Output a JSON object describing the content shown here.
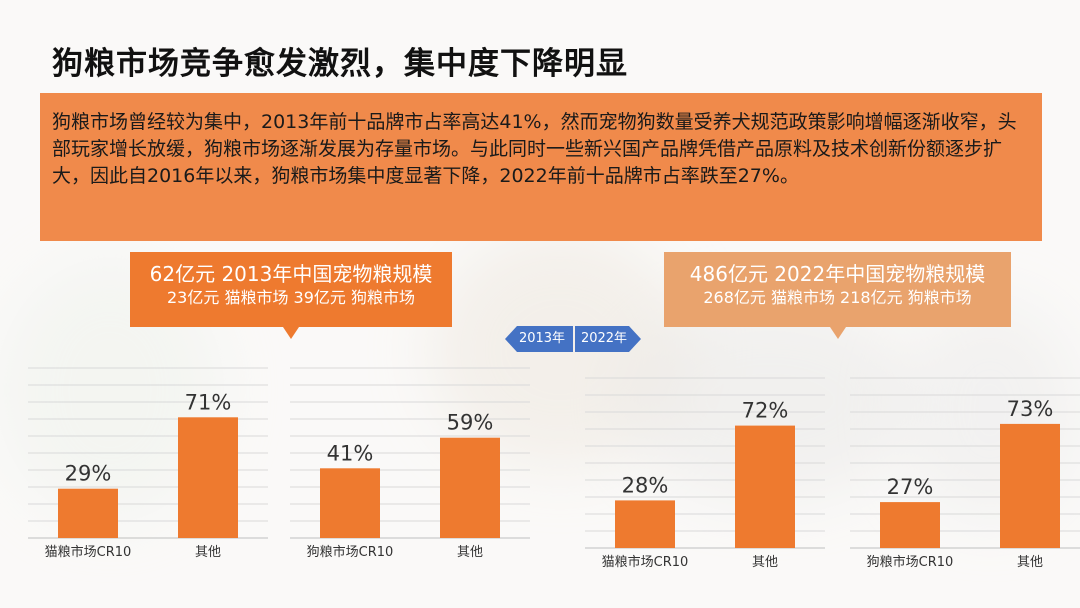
{
  "page": {
    "title": "狗粮市场竞争愈发激烈，集中度下降明显",
    "intro": "狗粮市场曾经较为集中，2013年前十品牌市占率高达41%，然而宠物狗数量受养犬规范政策影响增幅逐渐收窄，头部玩家增长放缓，狗粮市场逐渐发展为存量市场。与此同时一些新兴国产品牌凭借产品原料及技术创新份额逐步扩大，因此自2016年以来，狗粮市场集中度显著下降，2022年前十品牌市占率跌至27%。"
  },
  "callouts": {
    "y2013": {
      "line1": "62亿元 2013年中国宠物粮规模",
      "line2": "23亿元 猫粮市场   39亿元  狗粮市场"
    },
    "y2022": {
      "line1": "486亿元 2022年中国宠物粮规模",
      "line2": "268亿元 猫粮市场 218亿元 狗粮市场"
    }
  },
  "year_nav": {
    "left": "2013年",
    "right": "2022年"
  },
  "colors": {
    "accent": "#ee7a2f",
    "intro_bg": "#f08a4b",
    "callout_2022": "#e9a36d",
    "nav": "#4472c4"
  },
  "chart_data": [
    {
      "type": "bar",
      "categories": [
        "猫粮市场CR10",
        "其他"
      ],
      "values": [
        29,
        71
      ],
      "labels": [
        "29%",
        "71%"
      ],
      "ylim": [
        0,
        100
      ]
    },
    {
      "type": "bar",
      "categories": [
        "狗粮市场CR10",
        "其他"
      ],
      "values": [
        41,
        59
      ],
      "labels": [
        "41%",
        "59%"
      ],
      "ylim": [
        0,
        100
      ]
    },
    {
      "type": "bar",
      "categories": [
        "猫粮市场CR10",
        "其他"
      ],
      "values": [
        28,
        72
      ],
      "labels": [
        "28%",
        "72%"
      ],
      "ylim": [
        0,
        100
      ]
    },
    {
      "type": "bar",
      "categories": [
        "狗粮市场CR10",
        "其他"
      ],
      "values": [
        27,
        73
      ],
      "labels": [
        "27%",
        "73%"
      ],
      "ylim": [
        0,
        100
      ]
    }
  ]
}
